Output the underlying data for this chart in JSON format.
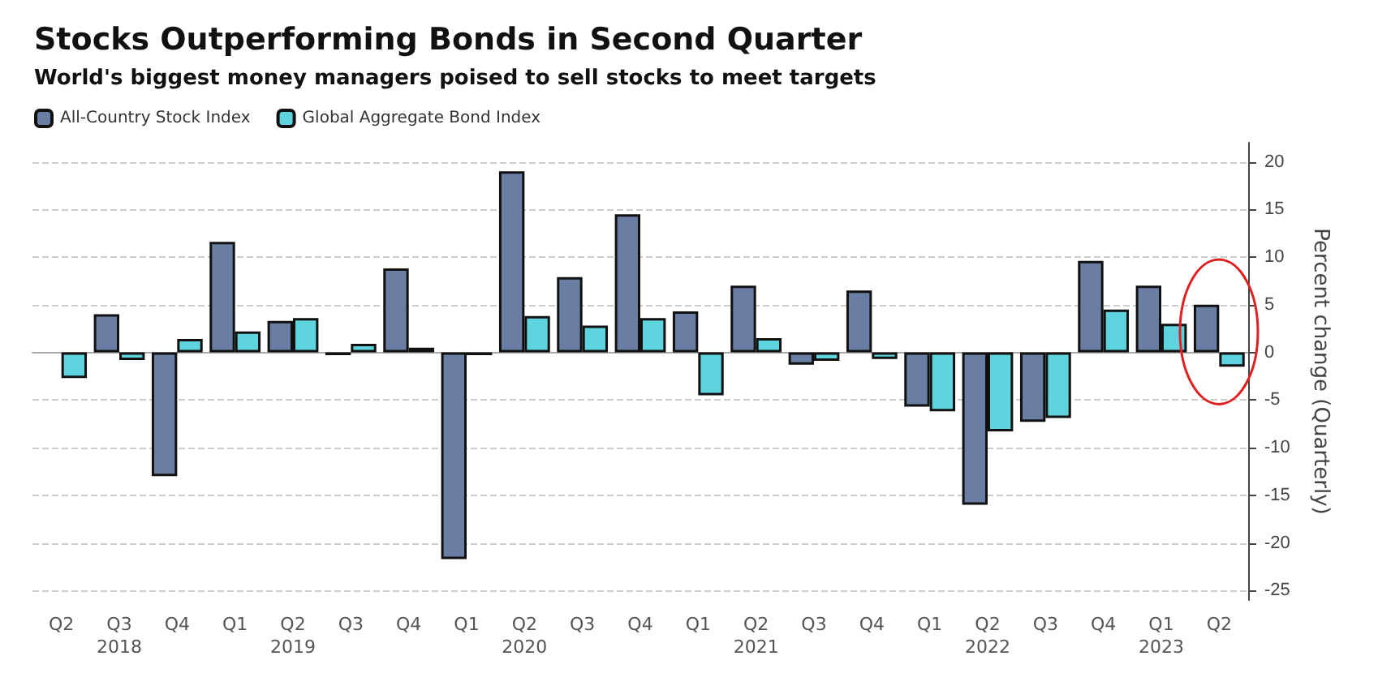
{
  "chart_data": {
    "type": "bar",
    "title": "Stocks Outperforming Bonds in Second Quarter",
    "subtitle": "World's biggest money managers poised to sell stocks to meet targets",
    "ylabel": "Percent change (Quarterly)",
    "categories": [
      "Q2",
      "Q3\n2018",
      "Q4",
      "Q1",
      "Q2\n2019",
      "Q3",
      "Q4",
      "Q1",
      "Q2\n2020",
      "Q3",
      "Q4",
      "Q1",
      "Q2\n2021",
      "Q3",
      "Q4",
      "Q1",
      "Q2\n2022",
      "Q3",
      "Q4",
      "Q1\n2023",
      "Q2"
    ],
    "series": [
      {
        "name": "All-Country Stock Index",
        "color": "#6a7ea3",
        "values": [
          null,
          4.0,
          -13.0,
          11.6,
          3.3,
          -0.3,
          8.8,
          -21.7,
          19.0,
          7.9,
          14.5,
          4.3,
          7.0,
          -1.3,
          6.5,
          -5.7,
          -16.0,
          -7.3,
          9.6,
          7.0,
          5.0
        ]
      },
      {
        "name": "Global Aggregate Bond Index",
        "color": "#5ed4de",
        "values": [
          -2.7,
          -0.8,
          1.4,
          2.2,
          3.6,
          0.9,
          0.5,
          -0.3,
          3.8,
          2.8,
          3.6,
          -4.5,
          1.5,
          -0.9,
          -0.7,
          -6.2,
          -8.3,
          -6.9,
          4.5,
          3.0,
          -1.5
        ]
      }
    ],
    "ylim": [
      -26,
      22
    ],
    "yticks": [
      -25,
      -20,
      -15,
      -10,
      -5,
      0,
      5,
      10,
      15,
      20
    ],
    "grid": "y",
    "legend": "top left"
  }
}
